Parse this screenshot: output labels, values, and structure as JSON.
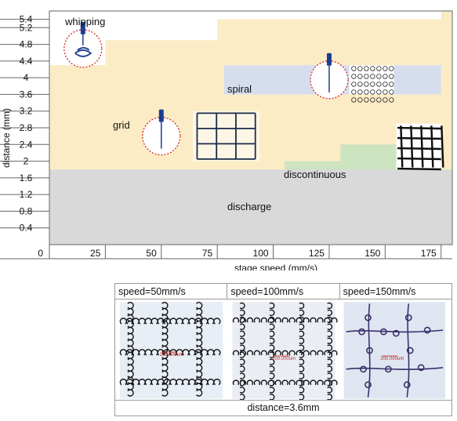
{
  "chart_data": {
    "type": "area",
    "title": "",
    "xlabel": "stage speed (mm/s)",
    "ylabel": "distance (mm)",
    "x_ticks": [
      0,
      25,
      50,
      75,
      100,
      125,
      150,
      175
    ],
    "x_tick_labels": [
      "0",
      "25",
      "50",
      "75",
      "100",
      "125",
      "150",
      "175"
    ],
    "y_ticks": [
      0.4,
      0.8,
      1.2,
      1.6,
      2,
      2.4,
      2.8,
      3.2,
      3.6,
      4,
      4.4,
      4.8,
      5.2,
      5.4
    ],
    "y_tick_labels": [
      "0.4",
      "0.8",
      "1.2",
      "1.6",
      "2",
      "2.4",
      "2.8",
      "3.2",
      "3.6",
      "4",
      "4.4",
      "4.8",
      "5.2",
      "5.4"
    ],
    "grid": false,
    "regions": [
      {
        "label": "discharge",
        "color": "#d9d9d9"
      },
      {
        "label": "grid",
        "color": "#fcecc6"
      },
      {
        "label": "whipping",
        "color": "#ffffff"
      },
      {
        "label": "spiral",
        "color": "#d6deee"
      },
      {
        "label": "discontinuous",
        "color": "#cce4bf"
      }
    ],
    "boundaries": {
      "discharge_upper": 1.8,
      "whipping_lower_step": [
        [
          0,
          4.3
        ],
        [
          25,
          4.9
        ],
        [
          75,
          5.4
        ],
        [
          175,
          5.4
        ]
      ],
      "spiral_box": {
        "x_range": [
          78,
          175
        ],
        "y_range": [
          3.6,
          4.3
        ]
      },
      "discontinuous_step": [
        [
          105,
          1.8
        ],
        [
          130,
          2.4
        ],
        [
          175,
          2.4
        ]
      ]
    },
    "markers": [
      {
        "region": "whipping",
        "speed": 15,
        "distance": 4.7,
        "icon": "needle-whipping-icon"
      },
      {
        "region": "grid",
        "speed": 50,
        "distance": 2.6,
        "icon": "needle-straight-icon"
      },
      {
        "region": "spiral",
        "speed": 125,
        "distance": 3.95,
        "icon": "needle-straight-icon"
      }
    ]
  },
  "micrographs": {
    "items": [
      {
        "caption": "speed=50mm/s",
        "scale_label": "200.000um"
      },
      {
        "caption": "speed=100mm/s",
        "scale_label": "200.000um"
      },
      {
        "caption": "speed=150mm/s",
        "scale_label": "200.000um"
      }
    ],
    "footer": "distance=3.6mm"
  }
}
